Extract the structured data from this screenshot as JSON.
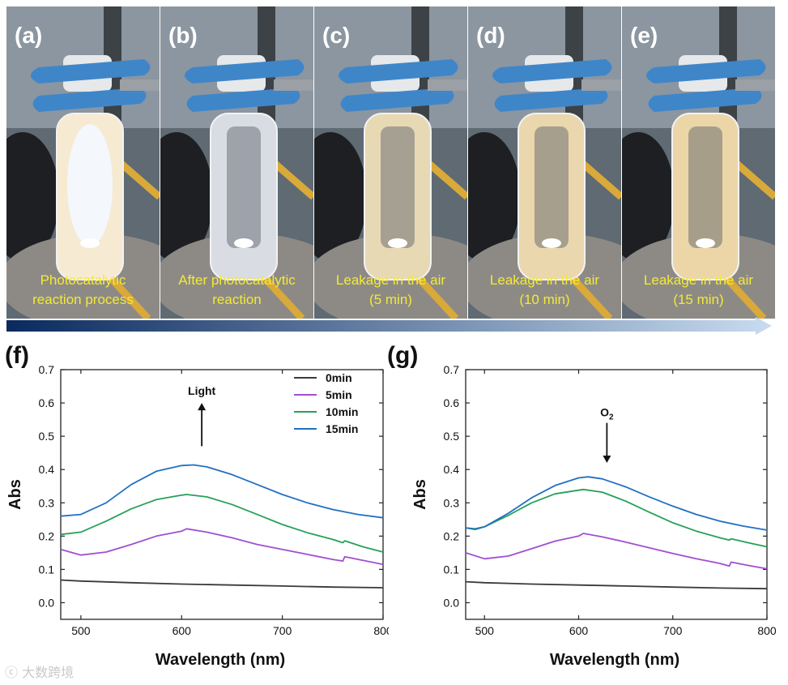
{
  "photos": [
    {
      "letter": "(a)",
      "caption": "Photocatalytic\nreaction process",
      "liquid": "#f6ead2",
      "glow": true
    },
    {
      "letter": "(b)",
      "caption": "After photocatalytic\nreaction",
      "liquid": "#d9dde3",
      "glow": false
    },
    {
      "letter": "(c)",
      "caption": "Leakage in the air\n(5 min)",
      "liquid": "#e8d9b5",
      "glow": false
    },
    {
      "letter": "(d)",
      "caption": "Leakage in the air\n(10 min)",
      "liquid": "#ead7ad",
      "glow": false
    },
    {
      "letter": "(e)",
      "caption": "Leakage in the air\n(15 min)",
      "liquid": "#ecd6a8",
      "glow": false
    }
  ],
  "colors": {
    "s0": "#3a3a3a",
    "s5": "#a14fd0",
    "s10": "#27a05a",
    "s15": "#2170c2",
    "arrow_start": "#0a2a5e",
    "arrow_end": "#c8dcf0"
  },
  "watermark": "大数跨境",
  "chart_data": [
    {
      "panel": "(f)",
      "type": "line",
      "xlabel": "Wavelength (nm)",
      "ylabel": "Abs",
      "xlim": [
        480,
        800
      ],
      "ylim": [
        -0.05,
        0.7
      ],
      "xticks": [
        500,
        600,
        700,
        800
      ],
      "yticks": [
        0.0,
        0.1,
        0.2,
        0.3,
        0.4,
        0.5,
        0.6,
        0.7
      ],
      "annotation": {
        "text": "Light",
        "direction": "up",
        "x": 620,
        "y_from": 0.47,
        "y_to": 0.6
      },
      "legend": {
        "position": "top-right",
        "entries": [
          "0min",
          "5min",
          "10min",
          "15min"
        ]
      },
      "series": [
        {
          "name": "0min",
          "x": [
            480,
            500,
            550,
            600,
            650,
            700,
            750,
            800
          ],
          "values": [
            0.068,
            0.065,
            0.06,
            0.056,
            0.053,
            0.05,
            0.047,
            0.045
          ]
        },
        {
          "name": "5min",
          "x": [
            480,
            500,
            525,
            550,
            575,
            600,
            605,
            625,
            650,
            675,
            700,
            725,
            750,
            760,
            762,
            780,
            800
          ],
          "values": [
            0.16,
            0.143,
            0.152,
            0.175,
            0.2,
            0.215,
            0.222,
            0.212,
            0.195,
            0.175,
            0.16,
            0.145,
            0.13,
            0.125,
            0.138,
            0.127,
            0.115
          ]
        },
        {
          "name": "10min",
          "x": [
            480,
            500,
            525,
            550,
            575,
            600,
            605,
            625,
            650,
            675,
            700,
            725,
            750,
            760,
            762,
            780,
            800
          ],
          "values": [
            0.205,
            0.212,
            0.245,
            0.282,
            0.31,
            0.323,
            0.325,
            0.318,
            0.295,
            0.265,
            0.235,
            0.21,
            0.19,
            0.18,
            0.186,
            0.168,
            0.152
          ]
        },
        {
          "name": "15min",
          "x": [
            480,
            500,
            525,
            550,
            575,
            600,
            612,
            625,
            650,
            675,
            700,
            725,
            750,
            775,
            800
          ],
          "values": [
            0.26,
            0.265,
            0.3,
            0.355,
            0.395,
            0.412,
            0.414,
            0.408,
            0.385,
            0.355,
            0.325,
            0.3,
            0.28,
            0.265,
            0.255
          ]
        }
      ]
    },
    {
      "panel": "(g)",
      "type": "line",
      "xlabel": "Wavelength (nm)",
      "ylabel": "Abs",
      "xlim": [
        480,
        800
      ],
      "ylim": [
        -0.05,
        0.7
      ],
      "xticks": [
        500,
        600,
        700,
        800
      ],
      "yticks": [
        0.0,
        0.1,
        0.2,
        0.3,
        0.4,
        0.5,
        0.6,
        0.7
      ],
      "annotation": {
        "text": "O",
        "subscript": "2",
        "direction": "down",
        "x": 630,
        "y_from": 0.54,
        "y_to": 0.42
      },
      "series": [
        {
          "name": "0min",
          "x": [
            480,
            500,
            550,
            600,
            650,
            700,
            750,
            800
          ],
          "values": [
            0.063,
            0.06,
            0.056,
            0.053,
            0.05,
            0.047,
            0.044,
            0.042
          ]
        },
        {
          "name": "5min",
          "x": [
            480,
            500,
            525,
            550,
            575,
            600,
            605,
            625,
            650,
            675,
            700,
            725,
            750,
            760,
            762,
            780,
            800
          ],
          "values": [
            0.15,
            0.132,
            0.14,
            0.162,
            0.185,
            0.2,
            0.208,
            0.198,
            0.182,
            0.165,
            0.148,
            0.132,
            0.118,
            0.11,
            0.122,
            0.112,
            0.102
          ]
        },
        {
          "name": "10min",
          "x": [
            480,
            490,
            500,
            525,
            550,
            575,
            600,
            605,
            625,
            650,
            675,
            700,
            725,
            750,
            760,
            762,
            780,
            800
          ],
          "values": [
            0.225,
            0.222,
            0.228,
            0.262,
            0.3,
            0.327,
            0.338,
            0.34,
            0.332,
            0.305,
            0.272,
            0.24,
            0.215,
            0.195,
            0.188,
            0.192,
            0.18,
            0.168
          ]
        },
        {
          "name": "15min",
          "x": [
            480,
            490,
            500,
            525,
            550,
            575,
            600,
            610,
            625,
            650,
            675,
            700,
            725,
            750,
            775,
            800
          ],
          "values": [
            0.225,
            0.22,
            0.228,
            0.268,
            0.315,
            0.352,
            0.375,
            0.378,
            0.372,
            0.348,
            0.318,
            0.29,
            0.265,
            0.245,
            0.23,
            0.218
          ]
        }
      ]
    }
  ]
}
